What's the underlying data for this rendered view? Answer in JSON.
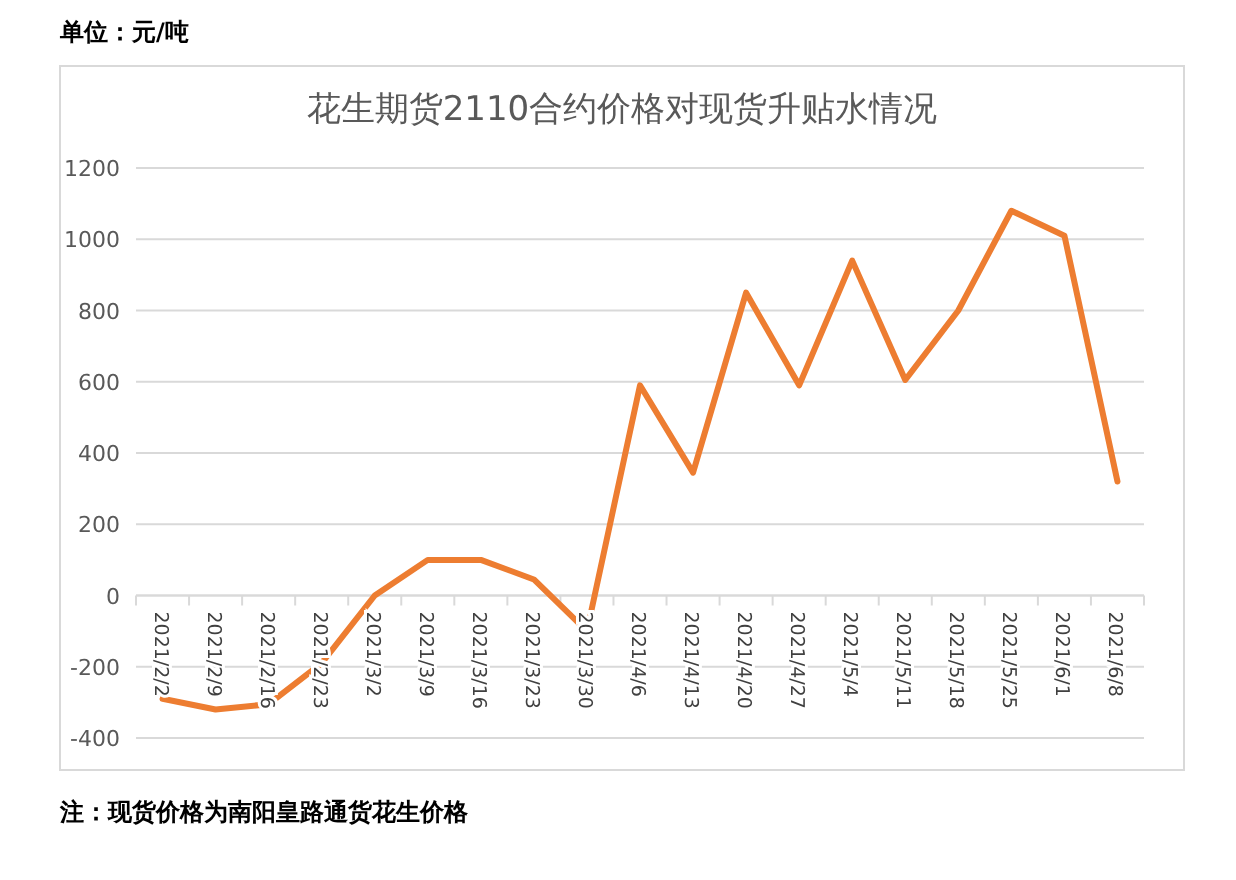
{
  "chart_data": {
    "type": "line",
    "title": "花生期货2110合约价格对现货升贴水情况",
    "ylabel": "单位：元/吨",
    "categories": [
      "2021/2/2",
      "2021/2/9",
      "2021/2/16",
      "2021/2/23",
      "2021/3/2",
      "2021/3/9",
      "2021/3/16",
      "2021/3/23",
      "2021/3/30",
      "2021/4/6",
      "2021/4/13",
      "2021/4/20",
      "2021/4/27",
      "2021/5/4",
      "2021/5/11",
      "2021/5/18",
      "2021/5/25",
      "2021/6/1",
      "2021/6/8"
    ],
    "series": [
      {
        "color": "#ed7d31",
        "values": [
          -290,
          -320,
          -305,
          -190,
          0,
          100,
          100,
          45,
          -100,
          590,
          345,
          850,
          590,
          940,
          605,
          800,
          1080,
          1010,
          320
        ]
      }
    ],
    "ylim": [
      -400,
      1200
    ],
    "yticks": [
      -400,
      -200,
      0,
      200,
      400,
      600,
      800,
      1000,
      1200
    ],
    "grid": "y",
    "marker": "none",
    "line_style": "solid",
    "annotations": [
      "注：现货价格为南阳皇路通货花生价格"
    ]
  }
}
